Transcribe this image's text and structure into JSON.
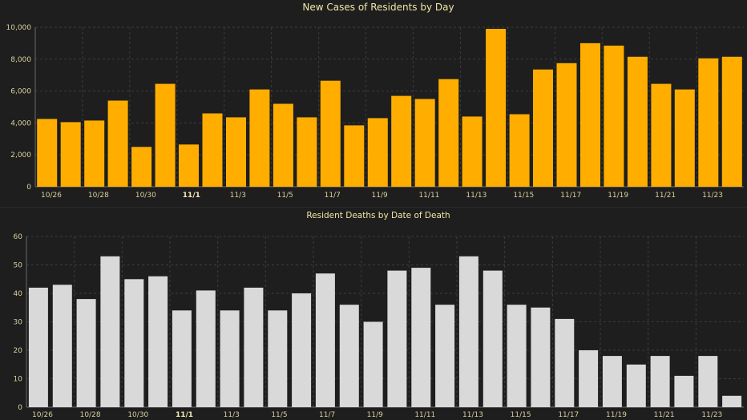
{
  "chart_data": [
    {
      "type": "bar",
      "title": "New Cases of Residents by Day",
      "xlabel": "",
      "ylabel": "",
      "ylim": [
        0,
        10000
      ],
      "yticks": [
        "0",
        "2,000",
        "4,000",
        "6,000",
        "8,000",
        "10,000"
      ],
      "grid": true,
      "bar_color": "#ffae00",
      "categories": [
        "10/26",
        "10/27",
        "10/28",
        "10/29",
        "10/30",
        "10/31",
        "11/1",
        "11/2",
        "11/3",
        "11/4",
        "11/5",
        "11/6",
        "11/7",
        "11/8",
        "11/9",
        "11/10",
        "11/11",
        "11/12",
        "11/13",
        "11/14",
        "11/15",
        "11/16",
        "11/17",
        "11/18",
        "11/19",
        "11/20",
        "11/21",
        "11/22",
        "11/23",
        "11/24"
      ],
      "tick_labels": [
        {
          "index": 0,
          "text": "10/26"
        },
        {
          "index": 2,
          "text": "10/28"
        },
        {
          "index": 4,
          "text": "10/30"
        },
        {
          "index": 6,
          "text": "11/1",
          "bold": true
        },
        {
          "index": 8,
          "text": "11/3"
        },
        {
          "index": 10,
          "text": "11/5"
        },
        {
          "index": 12,
          "text": "11/7"
        },
        {
          "index": 14,
          "text": "11/9"
        },
        {
          "index": 16,
          "text": "11/11"
        },
        {
          "index": 18,
          "text": "11/13"
        },
        {
          "index": 20,
          "text": "11/15"
        },
        {
          "index": 22,
          "text": "11/17"
        },
        {
          "index": 24,
          "text": "11/19"
        },
        {
          "index": 26,
          "text": "11/21"
        },
        {
          "index": 28,
          "text": "11/23"
        }
      ],
      "values": [
        4250,
        4050,
        4150,
        5400,
        2500,
        6450,
        2650,
        4600,
        4350,
        6100,
        5200,
        4350,
        6650,
        3850,
        4300,
        5700,
        5500,
        6750,
        4400,
        9900,
        4550,
        7350,
        7750,
        9000,
        8850,
        8150,
        6450,
        6100,
        8050,
        8150
      ]
    },
    {
      "type": "bar",
      "title": "Resident Deaths by Date of Death",
      "xlabel": "",
      "ylabel": "",
      "ylim": [
        0,
        60
      ],
      "yticks": [
        "0",
        "10",
        "20",
        "30",
        "40",
        "50",
        "60"
      ],
      "grid": true,
      "bar_color": "#d9d9d9",
      "categories": [
        "10/26",
        "10/27",
        "10/28",
        "10/29",
        "10/30",
        "10/31",
        "11/1",
        "11/2",
        "11/3",
        "11/4",
        "11/5",
        "11/6",
        "11/7",
        "11/8",
        "11/9",
        "11/10",
        "11/11",
        "11/12",
        "11/13",
        "11/14",
        "11/15",
        "11/16",
        "11/17",
        "11/18",
        "11/19",
        "11/20",
        "11/21",
        "11/22",
        "11/23",
        "11/24"
      ],
      "tick_labels": [
        {
          "index": 0,
          "text": "10/26"
        },
        {
          "index": 2,
          "text": "10/28"
        },
        {
          "index": 4,
          "text": "10/30"
        },
        {
          "index": 6,
          "text": "11/1",
          "bold": true
        },
        {
          "index": 8,
          "text": "11/3"
        },
        {
          "index": 10,
          "text": "11/5"
        },
        {
          "index": 12,
          "text": "11/7"
        },
        {
          "index": 14,
          "text": "11/9"
        },
        {
          "index": 16,
          "text": "11/11"
        },
        {
          "index": 18,
          "text": "11/13"
        },
        {
          "index": 20,
          "text": "11/15"
        },
        {
          "index": 22,
          "text": "11/17"
        },
        {
          "index": 24,
          "text": "11/19"
        },
        {
          "index": 26,
          "text": "11/21"
        },
        {
          "index": 28,
          "text": "11/23"
        }
      ],
      "values": [
        42,
        43,
        38,
        53,
        45,
        46,
        34,
        41,
        34,
        42,
        34,
        40,
        47,
        36,
        30,
        48,
        49,
        36,
        53,
        48,
        36,
        35,
        31,
        20,
        18,
        15,
        18,
        11,
        18,
        4
      ]
    }
  ]
}
